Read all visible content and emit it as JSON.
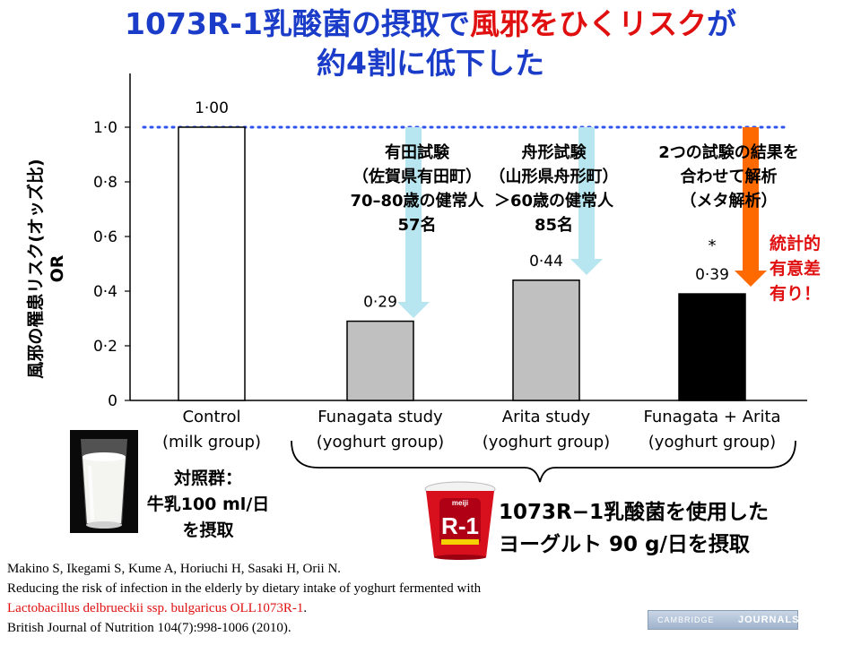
{
  "title": {
    "line1_blue": "1073R-1乳酸菌の摂取で",
    "line1_red": "風邪をひくリスク",
    "line1_blue2": "が",
    "line2": "約4割に低下した"
  },
  "chart_data": {
    "type": "bar",
    "ylabel": "風邪の罹患リスク(オッズ比)\nOR",
    "ylim": [
      0,
      1.0
    ],
    "yticks": [
      "0",
      "0·2",
      "0·4",
      "0·6",
      "0·8",
      "1·0"
    ],
    "categories": [
      {
        "line1": "Control",
        "line2": "(milk group)"
      },
      {
        "line1": "Funagata study",
        "line2": "(yoghurt group)"
      },
      {
        "line1": "Arita study",
        "line2": "(yoghurt group)"
      },
      {
        "line1": "Funagata + Arita",
        "line2": "(yoghurt group)"
      }
    ],
    "values": [
      1.0,
      0.29,
      0.44,
      0.39
    ],
    "value_labels": [
      "1·00",
      "0·29",
      "0·44",
      "0·39"
    ],
    "bar_colors": [
      "#ffffff",
      "#c0c0c0",
      "#c0c0c0",
      "#000000"
    ],
    "reference_line": 1.0,
    "asterisk": "*"
  },
  "annotations": {
    "arita": [
      "有田試験",
      "（佐賀県有田町）",
      "70–80歳の健常人",
      "57名"
    ],
    "funagata": [
      "舟形試験",
      "（山形県舟形町）",
      "＞60歳の健常人",
      "85名"
    ],
    "meta": [
      "2つの試験の結果を",
      "合わせて解析",
      "（メタ解析）"
    ],
    "significance": [
      "統計的",
      "有意差",
      "有り！"
    ]
  },
  "colors": {
    "title_blue": "#1a3cc8",
    "accent_red": "#e01010",
    "arrow_light": "#b7e6f0",
    "arrow_orange": "#ff6a00",
    "dotted_line": "#3355ee"
  },
  "control_group": [
    "対照群：",
    "牛乳100 ml/日",
    "を摂取"
  ],
  "yoghurt_group": [
    "1073R−1乳酸菌を使用した",
    "ヨーグルト 90 g/日を摂取"
  ],
  "reference": {
    "authors": "Makino S, Ikegami S, Kume A, Horiuchi H, Sasaki H, Orii N.",
    "title": "Reducing the risk of infection in the elderly by dietary intake of yoghurt fermented with",
    "organism": "Lactobacillus delbrueckii ssp. bulgaricus OLL1073R-1",
    "journal": "British Journal of Nutrition 104(7):998-1006 (2010)."
  },
  "journal_badge": {
    "part1": "CAMBRIDGE",
    "part2": "JOURNALS"
  },
  "yogurt_cup": {
    "brand": "meiji",
    "big": "R-1"
  }
}
